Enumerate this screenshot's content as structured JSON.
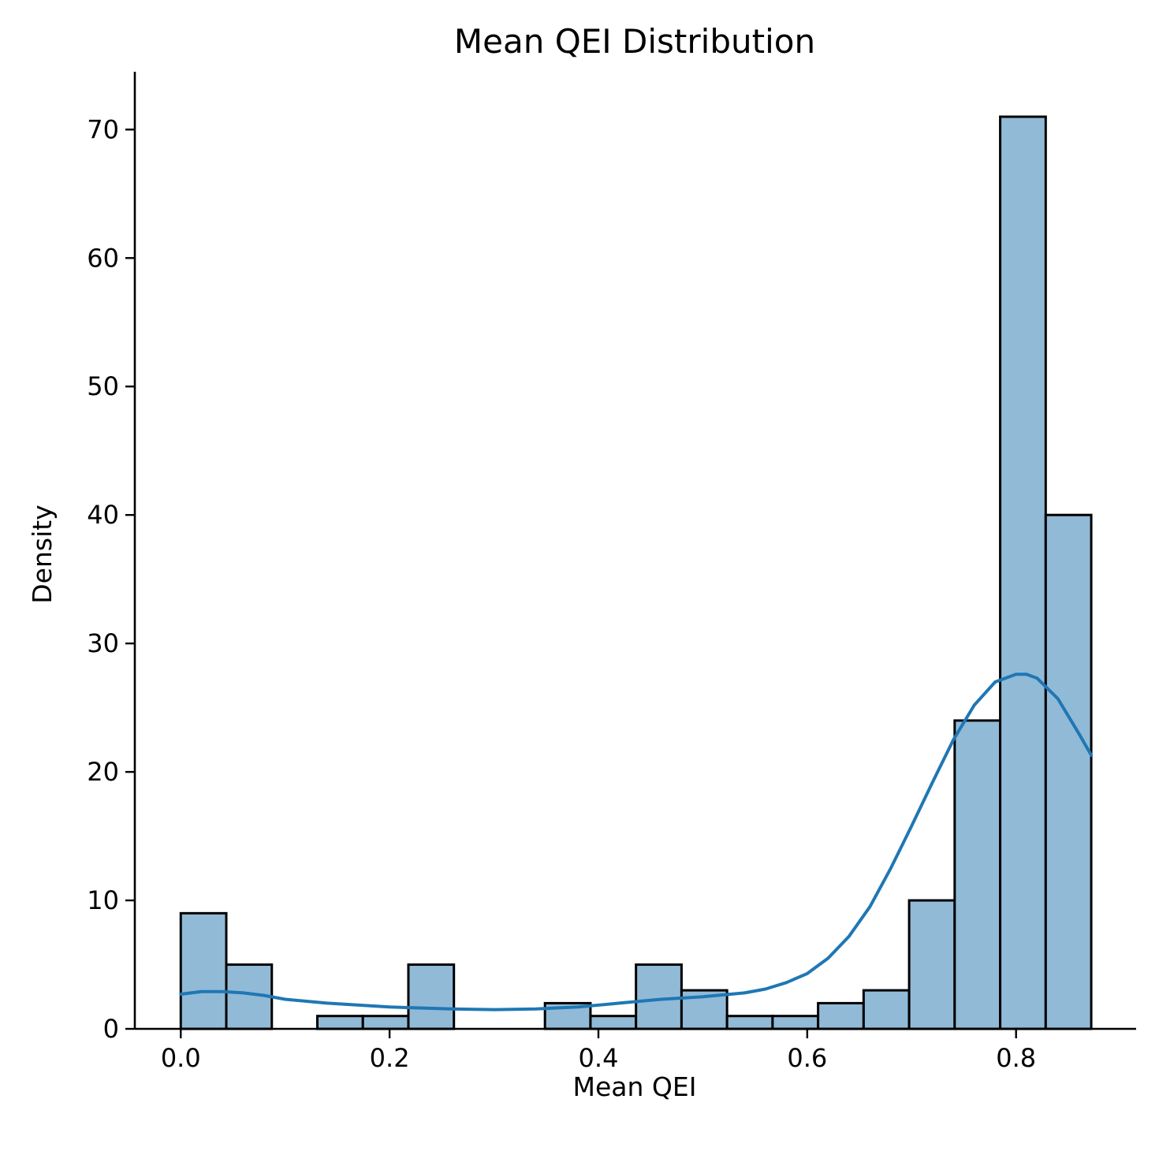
{
  "chart_data": {
    "type": "bar",
    "title": "Mean QEI Distribution",
    "xlabel": "Mean QEI",
    "ylabel": "Density",
    "xlim": [
      -0.044,
      0.915
    ],
    "ylim": [
      0,
      74.5
    ],
    "xticks": [
      0.0,
      0.2,
      0.4,
      0.6,
      0.8
    ],
    "xtick_labels": [
      "0.0",
      "0.2",
      "0.4",
      "0.6",
      "0.8"
    ],
    "yticks": [
      0,
      10,
      20,
      30,
      40,
      50,
      60,
      70
    ],
    "ytick_labels": [
      "0",
      "10",
      "20",
      "30",
      "40",
      "50",
      "60",
      "70"
    ],
    "bins": [
      {
        "x0": 0.0,
        "x1": 0.0436,
        "value": 9
      },
      {
        "x0": 0.0436,
        "x1": 0.0872,
        "value": 5
      },
      {
        "x0": 0.0872,
        "x1": 0.1308,
        "value": 0
      },
      {
        "x0": 0.1308,
        "x1": 0.1744,
        "value": 1
      },
      {
        "x0": 0.1744,
        "x1": 0.218,
        "value": 1
      },
      {
        "x0": 0.218,
        "x1": 0.2616,
        "value": 5
      },
      {
        "x0": 0.2616,
        "x1": 0.3052,
        "value": 0
      },
      {
        "x0": 0.3052,
        "x1": 0.3488,
        "value": 0
      },
      {
        "x0": 0.3488,
        "x1": 0.3924,
        "value": 2
      },
      {
        "x0": 0.3924,
        "x1": 0.436,
        "value": 1
      },
      {
        "x0": 0.436,
        "x1": 0.4796,
        "value": 5
      },
      {
        "x0": 0.4796,
        "x1": 0.5232,
        "value": 3
      },
      {
        "x0": 0.5232,
        "x1": 0.5668,
        "value": 1
      },
      {
        "x0": 0.5668,
        "x1": 0.6104,
        "value": 1
      },
      {
        "x0": 0.6104,
        "x1": 0.654,
        "value": 2
      },
      {
        "x0": 0.654,
        "x1": 0.6976,
        "value": 3
      },
      {
        "x0": 0.6976,
        "x1": 0.7412,
        "value": 10
      },
      {
        "x0": 0.7412,
        "x1": 0.7848,
        "value": 24
      },
      {
        "x0": 0.7848,
        "x1": 0.8284,
        "value": 71
      },
      {
        "x0": 0.8284,
        "x1": 0.872,
        "value": 40
      }
    ],
    "kde": {
      "x": [
        0.0,
        0.02,
        0.04,
        0.06,
        0.08,
        0.1,
        0.14,
        0.2,
        0.26,
        0.3,
        0.34,
        0.38,
        0.42,
        0.46,
        0.5,
        0.54,
        0.56,
        0.58,
        0.6,
        0.62,
        0.64,
        0.66,
        0.68,
        0.7,
        0.72,
        0.74,
        0.76,
        0.78,
        0.8,
        0.81,
        0.82,
        0.84,
        0.86,
        0.872
      ],
      "y": [
        2.7,
        2.9,
        2.9,
        2.8,
        2.6,
        2.3,
        2.0,
        1.7,
        1.55,
        1.5,
        1.55,
        1.7,
        2.0,
        2.3,
        2.5,
        2.8,
        3.1,
        3.6,
        4.3,
        5.5,
        7.2,
        9.5,
        12.5,
        15.8,
        19.2,
        22.5,
        25.2,
        27.0,
        27.6,
        27.6,
        27.3,
        25.7,
        23.0,
        21.3
      ]
    },
    "bar_color": "#91bad7",
    "edge_color": "#000000",
    "kde_color": "#1f77b4",
    "grid": false,
    "legend": false
  }
}
